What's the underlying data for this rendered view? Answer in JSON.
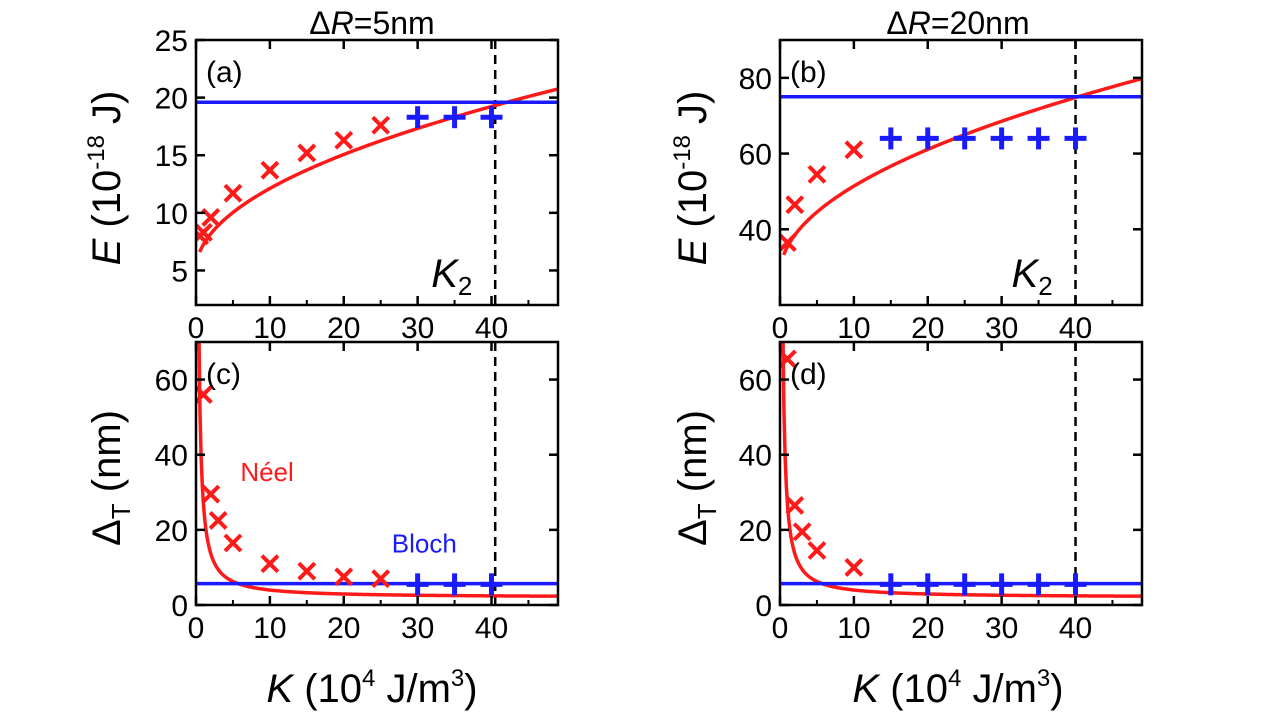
{
  "figure": {
    "colors": {
      "neel": "#ff1a1a",
      "bloch": "#1a1aff",
      "axis": "#000000",
      "marker_line": "#000000"
    },
    "columns": [
      {
        "title_prefix": "ΔR",
        "title_value": "=5nm"
      },
      {
        "title_prefix": "ΔR",
        "title_value": "=20nm"
      }
    ],
    "x_label": {
      "main": "K",
      "unit_pre": " (10",
      "unit_exp": "4",
      "unit_mid": " J/m",
      "unit_exp2": "3",
      "unit_post": ")"
    },
    "y_label_energy": {
      "main": "E",
      "unit_pre": " (10",
      "unit_exp": "-18",
      "unit_post": " J)"
    },
    "y_label_width": {
      "main": "Δ",
      "sub": "T",
      "unit": " (nm)"
    },
    "curve_labels": {
      "neel": "Néel",
      "bloch": "Bloch"
    }
  },
  "chart_data": [
    {
      "id": "a",
      "panel_label": "(a)",
      "type": "scatter",
      "xlim": [
        0,
        49
      ],
      "ylim": [
        2,
        25
      ],
      "xticks": [
        0,
        10,
        20,
        30,
        40
      ],
      "xtick_labels": [
        "0",
        "10",
        "20",
        "30",
        "40"
      ],
      "yticks": [
        5,
        10,
        15,
        20,
        25
      ],
      "ytick_labels": [
        "5",
        "10",
        "15",
        "20",
        "25"
      ],
      "ylabel": "E (10^-18 J)",
      "marker_line": {
        "x": 40.5,
        "label_main": "K",
        "label_sub": "2"
      },
      "series": [
        {
          "name": "Néel (sim)",
          "kind": "cross",
          "color": "neel",
          "x": [
            1,
            2,
            5,
            10,
            15,
            20,
            25
          ],
          "y": [
            8.3,
            9.6,
            11.7,
            13.7,
            15.2,
            16.3,
            17.6
          ]
        },
        {
          "name": "Néel (sim, K=0.5)",
          "kind": "cross",
          "color": "neel",
          "x": [
            0.5
          ],
          "y": [
            8.0
          ]
        },
        {
          "name": "Bloch (sim)",
          "kind": "plus",
          "color": "bloch",
          "x": [
            30,
            35,
            40
          ],
          "y": [
            18.3,
            18.3,
            18.3
          ]
        },
        {
          "name": "Néel (theory)",
          "kind": "curve",
          "color": "neel",
          "model": "sqrt",
          "a": 5.0,
          "b": 2.25,
          "x_range": [
            0.5,
            49
          ]
        },
        {
          "name": "Bloch (theory)",
          "kind": "hline",
          "color": "bloch",
          "y": 19.6
        }
      ]
    },
    {
      "id": "b",
      "panel_label": "(b)",
      "type": "scatter",
      "xlim": [
        0,
        49
      ],
      "ylim": [
        20,
        90
      ],
      "xticks": [
        0,
        10,
        20,
        30,
        40
      ],
      "xtick_labels": [
        "0",
        "10",
        "20",
        "30",
        "40"
      ],
      "yticks": [
        40,
        60,
        80
      ],
      "ytick_labels": [
        "40",
        "60",
        "80"
      ],
      "ylabel": "E (10^-18 J)",
      "marker_line": {
        "x": 40,
        "label_main": "K",
        "label_sub": "2"
      },
      "series": [
        {
          "name": "Néel (sim)",
          "kind": "cross",
          "color": "neel",
          "x": [
            1,
            2,
            5,
            10
          ],
          "y": [
            36.5,
            46.5,
            54.5,
            61.0
          ]
        },
        {
          "name": "Bloch (sim)",
          "kind": "plus",
          "color": "bloch",
          "x": [
            15,
            20,
            25,
            30,
            35,
            40
          ],
          "y": [
            64,
            64,
            64,
            64,
            64,
            64
          ]
        },
        {
          "name": "Néel (theory)",
          "kind": "curve",
          "color": "neel",
          "model": "sqrt",
          "a": 28.0,
          "b": 7.4,
          "x_range": [
            0.5,
            49
          ]
        },
        {
          "name": "Bloch (theory)",
          "kind": "hline",
          "color": "bloch",
          "y": 75
        }
      ]
    },
    {
      "id": "c",
      "panel_label": "(c)",
      "type": "scatter",
      "xlim": [
        0,
        49
      ],
      "ylim": [
        0,
        70
      ],
      "xticks": [
        0,
        10,
        20,
        30,
        40
      ],
      "xtick_labels": [
        "0",
        "10",
        "20",
        "30",
        "40"
      ],
      "yticks": [
        0,
        20,
        40,
        60
      ],
      "ytick_labels": [
        "0",
        "20",
        "40",
        "60"
      ],
      "ylabel": "Δ_T (nm)",
      "marker_line": {
        "x": 40.5
      },
      "show_curve_labels": true,
      "series": [
        {
          "name": "Néel (sim)",
          "kind": "cross",
          "color": "neel",
          "x": [
            1,
            2,
            3,
            5,
            10,
            15,
            20,
            25
          ],
          "y": [
            56,
            29.5,
            22.5,
            16.5,
            11,
            9,
            7.5,
            7
          ]
        },
        {
          "name": "Bloch (sim)",
          "kind": "plus",
          "color": "bloch",
          "x": [
            30,
            35,
            40
          ],
          "y": [
            5.5,
            5.5,
            5.5
          ]
        },
        {
          "name": "Néel (theory)",
          "kind": "curve",
          "color": "neel",
          "model": "inv",
          "c": 2.0,
          "d": 25.0,
          "p": 1.1,
          "x_range": [
            0.37,
            49
          ]
        },
        {
          "name": "Bloch (theory)",
          "kind": "hline",
          "color": "bloch",
          "y": 5.7
        }
      ]
    },
    {
      "id": "d",
      "panel_label": "(d)",
      "type": "scatter",
      "xlim": [
        0,
        49
      ],
      "ylim": [
        0,
        70
      ],
      "xticks": [
        0,
        10,
        20,
        30,
        40
      ],
      "xtick_labels": [
        "0",
        "10",
        "20",
        "30",
        "40"
      ],
      "yticks": [
        0,
        20,
        40,
        60
      ],
      "ytick_labels": [
        "0",
        "20",
        "40",
        "60"
      ],
      "ylabel": "Δ_T (nm)",
      "marker_line": {
        "x": 40
      },
      "series": [
        {
          "name": "Néel (sim)",
          "kind": "cross",
          "color": "neel",
          "x": [
            1,
            2,
            3,
            5,
            10
          ],
          "y": [
            65.5,
            26.5,
            19.5,
            14.5,
            10
          ]
        },
        {
          "name": "Bloch (sim)",
          "kind": "plus",
          "color": "bloch",
          "x": [
            15,
            20,
            25,
            30,
            35,
            40
          ],
          "y": [
            5.5,
            5.5,
            5.5,
            5.5,
            5.5,
            5.5
          ]
        },
        {
          "name": "Néel (theory)",
          "kind": "curve",
          "color": "neel",
          "model": "inv",
          "c": 2.0,
          "d": 25.0,
          "p": 1.1,
          "x_range": [
            0.37,
            49
          ]
        },
        {
          "name": "Bloch (theory)",
          "kind": "hline",
          "color": "bloch",
          "y": 5.7
        }
      ]
    }
  ]
}
